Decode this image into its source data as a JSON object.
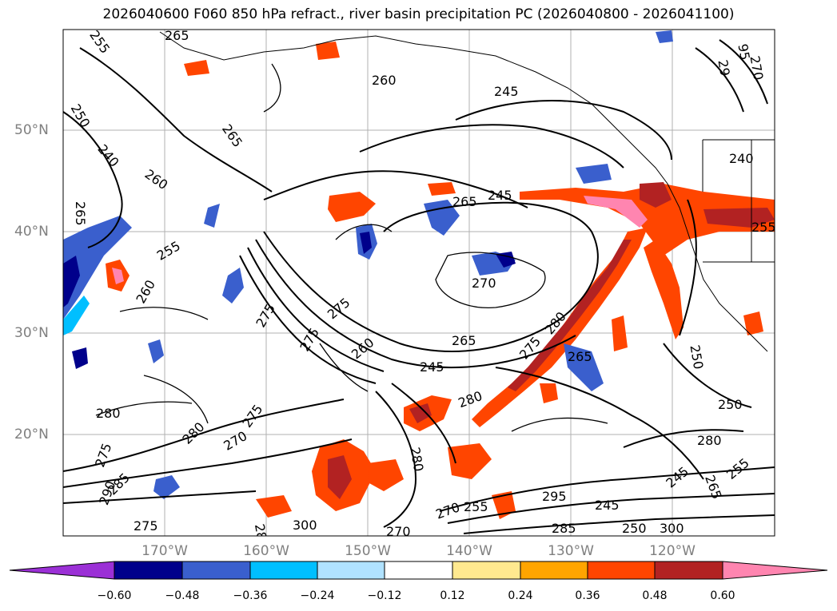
{
  "title": "2026040600 F060 850 hPa refract., river basin precipitation PC (2026040800 - 2026041100)",
  "lat_labels": [
    "50°N",
    "40°N",
    "30°N",
    "20°N"
  ],
  "lon_labels": [
    "170°W",
    "160°W",
    "150°W",
    "140°W",
    "130°W",
    "120°W"
  ],
  "colorbar": {
    "ticks": [
      "−0.60",
      "−0.48",
      "−0.36",
      "−0.24",
      "−0.12",
      "0.12",
      "0.24",
      "0.36",
      "0.48",
      "0.60"
    ],
    "colors": [
      "#9b30d6",
      "#00008b",
      "#3a5fcd",
      "#00bfff",
      "#b0e2ff",
      "#ffffff",
      "#ffe98f",
      "#ffa500",
      "#ff4500",
      "#b22222",
      "#ff85b0"
    ]
  },
  "contour_labels": [
    "255",
    "265",
    "260",
    "245",
    "250",
    "240",
    "265",
    "260",
    "265",
    "255",
    "260",
    "245",
    "265",
    "270",
    "265",
    "280",
    "275",
    "275",
    "245",
    "265",
    "280",
    "280",
    "275",
    "280",
    "270",
    "275",
    "290",
    "285",
    "275",
    "300",
    "295",
    "280",
    "250",
    "245",
    "255",
    "265",
    "240",
    "250",
    "245",
    "250",
    "300",
    "285",
    "270",
    "255",
    "280",
    "285",
    "270",
    "275",
    "29",
    "95",
    "270",
    "260",
    "255",
    "275"
  ]
}
